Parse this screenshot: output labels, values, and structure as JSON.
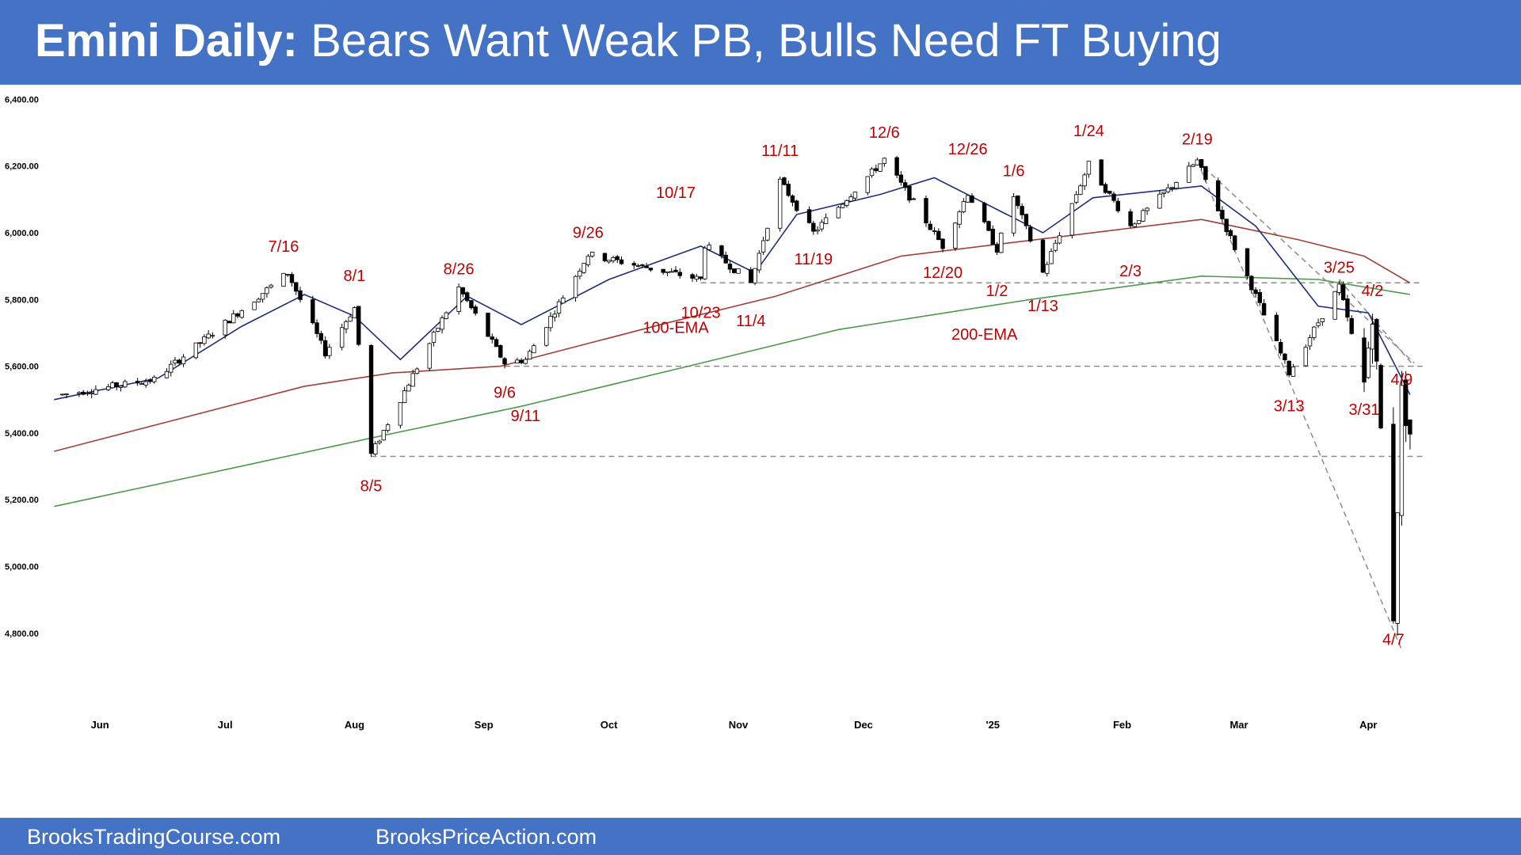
{
  "header": {
    "title_bold": "Emini Daily:",
    "title_rest": " Bears Want Weak PB, Bulls Need FT Buying",
    "background": "#4472c4"
  },
  "footer": {
    "left_link": "BrooksTradingCourse.com",
    "right_link": "BrooksPriceAction.com"
  },
  "chart_data": {
    "type": "candlestick",
    "title": "Emini Daily: Bears Want Weak PB, Bulls Need FT Buying",
    "y_ticks": [
      {
        "value": 4800,
        "label": "4,800.00"
      },
      {
        "value": 5000,
        "label": "5,000.00"
      },
      {
        "value": 5200,
        "label": "5,200.00"
      },
      {
        "value": 5400,
        "label": "5,400.00"
      },
      {
        "value": 5600,
        "label": "5,600.00"
      },
      {
        "value": 5800,
        "label": "5,800.00"
      },
      {
        "value": 6000,
        "label": "6,000.00"
      },
      {
        "value": 6200,
        "label": "6,200.00"
      },
      {
        "value": 6400,
        "label": "6,400.00"
      }
    ],
    "ylim": [
      4700,
      6420
    ],
    "x_ticks": [
      {
        "date": "2024-06-01",
        "label": "Jun"
      },
      {
        "date": "2024-07-01",
        "label": "Jul"
      },
      {
        "date": "2024-08-01",
        "label": "Aug"
      },
      {
        "date": "2024-09-01",
        "label": "Sep"
      },
      {
        "date": "2024-10-01",
        "label": "Oct"
      },
      {
        "date": "2024-11-01",
        "label": "Nov"
      },
      {
        "date": "2024-12-01",
        "label": "Dec"
      },
      {
        "date": "2025-01-01",
        "label": "'25"
      },
      {
        "date": "2025-02-01",
        "label": "Feb"
      },
      {
        "date": "2025-03-01",
        "label": "Mar"
      },
      {
        "date": "2025-04-01",
        "label": "Apr"
      }
    ],
    "xlim": [
      "2024-05-20",
      "2025-04-30"
    ],
    "swing_points": [
      {
        "date": "2024-05-23",
        "price": 5515
      },
      {
        "date": "2024-06-14",
        "price": 5560
      },
      {
        "date": "2024-07-16",
        "price": 5880
      },
      {
        "date": "2024-07-25",
        "price": 5640
      },
      {
        "date": "2024-08-01",
        "price": 5775
      },
      {
        "date": "2024-08-05",
        "price": 5335
      },
      {
        "date": "2024-08-26",
        "price": 5835
      },
      {
        "date": "2024-09-06",
        "price": 5610
      },
      {
        "date": "2024-09-11",
        "price": 5620
      },
      {
        "date": "2024-09-26",
        "price": 5935
      },
      {
        "date": "2024-10-23",
        "price": 5860
      },
      {
        "date": "2024-10-17",
        "price": 6035
      },
      {
        "date": "2024-11-04",
        "price": 5850
      },
      {
        "date": "2024-11-11",
        "price": 6155
      },
      {
        "date": "2024-11-19",
        "price": 6000
      },
      {
        "date": "2024-12-06",
        "price": 6220
      },
      {
        "date": "2024-12-20",
        "price": 5960
      },
      {
        "date": "2024-12-26",
        "price": 6120
      },
      {
        "date": "2025-01-02",
        "price": 5950
      },
      {
        "date": "2025-01-06",
        "price": 6110
      },
      {
        "date": "2025-01-13",
        "price": 5880
      },
      {
        "date": "2025-01-24",
        "price": 6205
      },
      {
        "date": "2025-02-03",
        "price": 6020
      },
      {
        "date": "2025-02-19",
        "price": 6215
      },
      {
        "date": "2025-03-13",
        "price": 5580
      },
      {
        "date": "2025-03-25",
        "price": 5840
      },
      {
        "date": "2025-03-31",
        "price": 5545
      },
      {
        "date": "2025-04-02",
        "price": 5770
      },
      {
        "date": "2025-04-07",
        "price": 4860
      },
      {
        "date": "2025-04-09",
        "price": 5515
      },
      {
        "date": "2025-04-11",
        "price": 5400
      }
    ],
    "ema20": [
      {
        "date": "2024-05-21",
        "price": 5500
      },
      {
        "date": "2024-06-15",
        "price": 5565
      },
      {
        "date": "2024-07-05",
        "price": 5720
      },
      {
        "date": "2024-07-20",
        "price": 5815
      },
      {
        "date": "2024-08-01",
        "price": 5750
      },
      {
        "date": "2024-08-12",
        "price": 5620
      },
      {
        "date": "2024-08-28",
        "price": 5810
      },
      {
        "date": "2024-09-10",
        "price": 5725
      },
      {
        "date": "2024-10-01",
        "price": 5860
      },
      {
        "date": "2024-10-23",
        "price": 5960
      },
      {
        "date": "2024-11-05",
        "price": 5880
      },
      {
        "date": "2024-11-15",
        "price": 6055
      },
      {
        "date": "2024-12-05",
        "price": 6115
      },
      {
        "date": "2024-12-18",
        "price": 6165
      },
      {
        "date": "2025-01-13",
        "price": 6000
      },
      {
        "date": "2025-01-25",
        "price": 6105
      },
      {
        "date": "2025-02-20",
        "price": 6140
      },
      {
        "date": "2025-03-05",
        "price": 6020
      },
      {
        "date": "2025-03-20",
        "price": 5780
      },
      {
        "date": "2025-04-01",
        "price": 5760
      },
      {
        "date": "2025-04-11",
        "price": 5515
      }
    ],
    "ema100": [
      {
        "date": "2024-05-21",
        "price": 5345
      },
      {
        "date": "2024-07-20",
        "price": 5540
      },
      {
        "date": "2024-08-10",
        "price": 5580
      },
      {
        "date": "2024-09-05",
        "price": 5600
      },
      {
        "date": "2024-10-15",
        "price": 5730
      },
      {
        "date": "2024-11-10",
        "price": 5810
      },
      {
        "date": "2024-12-10",
        "price": 5930
      },
      {
        "date": "2025-01-15",
        "price": 5985
      },
      {
        "date": "2025-02-20",
        "price": 6040
      },
      {
        "date": "2025-03-15",
        "price": 5980
      },
      {
        "date": "2025-03-31",
        "price": 5930
      },
      {
        "date": "2025-04-11",
        "price": 5850
      }
    ],
    "ema200": [
      {
        "date": "2024-05-21",
        "price": 5180
      },
      {
        "date": "2024-07-01",
        "price": 5290
      },
      {
        "date": "2024-08-05",
        "price": 5385
      },
      {
        "date": "2024-09-10",
        "price": 5480
      },
      {
        "date": "2024-10-20",
        "price": 5600
      },
      {
        "date": "2024-11-25",
        "price": 5710
      },
      {
        "date": "2025-01-10",
        "price": 5800
      },
      {
        "date": "2025-02-20",
        "price": 5870
      },
      {
        "date": "2025-03-20",
        "price": 5860
      },
      {
        "date": "2025-04-11",
        "price": 5815
      }
    ],
    "horizontal_levels": [
      {
        "price": 5850,
        "from": "2024-10-23",
        "to": "2025-04-14"
      },
      {
        "price": 5600,
        "from": "2024-09-06",
        "to": "2025-04-14"
      },
      {
        "price": 5330,
        "from": "2024-08-05",
        "to": "2025-04-14"
      }
    ],
    "trend_lines": [
      {
        "from": {
          "date": "2025-02-19",
          "price": 6215
        },
        "to": {
          "date": "2025-04-12",
          "price": 5610
        }
      },
      {
        "from": {
          "date": "2025-02-19",
          "price": 6215
        },
        "to": {
          "date": "2025-04-09",
          "price": 4750
        }
      },
      {
        "from": {
          "date": "2025-03-25",
          "price": 5860
        },
        "to": {
          "date": "2025-04-12",
          "price": 5600
        }
      }
    ],
    "annotations": [
      {
        "label": "7/16",
        "date": "2024-07-15",
        "price": 5943
      },
      {
        "label": "8/1",
        "date": "2024-08-01",
        "price": 5855
      },
      {
        "label": "8/5",
        "date": "2024-08-05",
        "price": 5225
      },
      {
        "label": "8/26",
        "date": "2024-08-26",
        "price": 5875
      },
      {
        "label": "9/6",
        "date": "2024-09-06",
        "price": 5505
      },
      {
        "label": "9/11",
        "date": "2024-09-11",
        "price": 5435
      },
      {
        "label": "9/26",
        "date": "2024-09-26",
        "price": 5985
      },
      {
        "label": "10/17",
        "date": "2024-10-17",
        "price": 6105
      },
      {
        "label": "10/23",
        "date": "2024-10-23",
        "price": 5745
      },
      {
        "label": "11/4",
        "date": "2024-11-04",
        "price": 5720
      },
      {
        "label": "11/11",
        "date": "2024-11-11",
        "price": 6230
      },
      {
        "label": "11/19",
        "date": "2024-11-19",
        "price": 5905
      },
      {
        "label": "12/6",
        "date": "2024-12-06",
        "price": 6285
      },
      {
        "label": "12/20",
        "date": "2024-12-20",
        "price": 5865
      },
      {
        "label": "12/26",
        "date": "2024-12-26",
        "price": 6235
      },
      {
        "label": "1/6",
        "date": "2025-01-06",
        "price": 6170
      },
      {
        "label": "1/2",
        "date": "2025-01-02",
        "price": 5810
      },
      {
        "label": "1/13",
        "date": "2025-01-13",
        "price": 5765
      },
      {
        "label": "1/24",
        "date": "2025-01-24",
        "price": 6290
      },
      {
        "label": "2/3",
        "date": "2025-02-03",
        "price": 5870
      },
      {
        "label": "2/19",
        "date": "2025-02-19",
        "price": 6265
      },
      {
        "label": "3/13",
        "date": "2025-03-13",
        "price": 5465
      },
      {
        "label": "3/25",
        "date": "2025-03-25",
        "price": 5880
      },
      {
        "label": "3/31",
        "date": "2025-03-31",
        "price": 5455
      },
      {
        "label": "4/2",
        "date": "2025-04-02",
        "price": 5810
      },
      {
        "label": "4/7",
        "date": "2025-04-07",
        "price": 4765
      },
      {
        "label": "4/9",
        "date": "2025-04-09",
        "price": 5545
      },
      {
        "label": "100-EMA",
        "date": "2024-10-17",
        "price": 5700
      },
      {
        "label": "200-EMA",
        "date": "2024-12-30",
        "price": 5680
      }
    ],
    "grid": false,
    "legend": "none"
  },
  "colors": {
    "ema20": "#1f2d7a",
    "ema100": "#a0403a",
    "ema200": "#4c9a4a",
    "annotation": "#c00000",
    "levels": "#8c8c8c"
  }
}
